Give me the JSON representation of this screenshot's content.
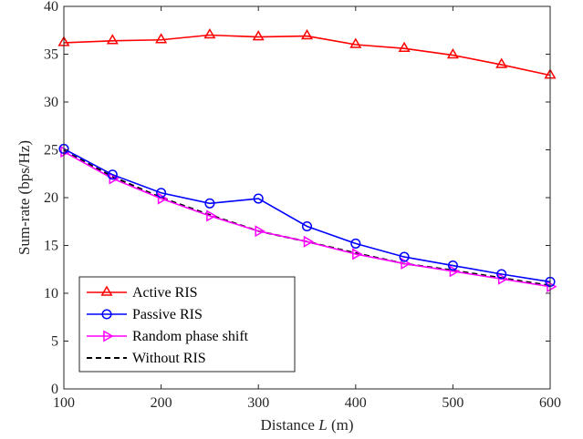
{
  "chart_data": {
    "type": "line",
    "xlabel": "Distance",
    "xlabel_var": "L",
    "xlabel_unit": "(m)",
    "ylabel": "Sum-rate (bps/Hz)",
    "xlim": [
      100,
      600
    ],
    "ylim": [
      0,
      40
    ],
    "xticks": [
      100,
      200,
      300,
      400,
      500,
      600
    ],
    "yticks": [
      0,
      5,
      10,
      15,
      20,
      25,
      30,
      35,
      40
    ],
    "grid": false,
    "legend_position": "bottom-left",
    "x": [
      100,
      150,
      200,
      250,
      300,
      350,
      400,
      450,
      500,
      550,
      600
    ],
    "series": [
      {
        "name": "Active RIS",
        "color": "#ff0000",
        "marker": "triangle-up",
        "line_style": "solid",
        "values": [
          36.2,
          36.4,
          36.5,
          37.0,
          36.8,
          36.9,
          36.0,
          35.6,
          34.9,
          33.9,
          32.8
        ]
      },
      {
        "name": "Passive RIS",
        "color": "#0000ff",
        "marker": "circle",
        "line_style": "solid",
        "values": [
          25.1,
          22.4,
          20.5,
          19.4,
          19.9,
          17.0,
          15.2,
          13.8,
          12.9,
          12.0,
          11.2
        ]
      },
      {
        "name": "Random phase shift",
        "color": "#ff00ff",
        "marker": "triangle-right",
        "line_style": "solid",
        "values": [
          24.8,
          22.0,
          19.9,
          18.1,
          16.5,
          15.4,
          14.1,
          13.1,
          12.3,
          11.5,
          10.7
        ]
      },
      {
        "name": "Without RIS",
        "color": "#000000",
        "marker": "none",
        "line_style": "dashed",
        "values": [
          24.9,
          22.2,
          20.0,
          18.2,
          16.5,
          15.4,
          14.2,
          13.1,
          12.4,
          11.6,
          10.8
        ]
      }
    ]
  }
}
